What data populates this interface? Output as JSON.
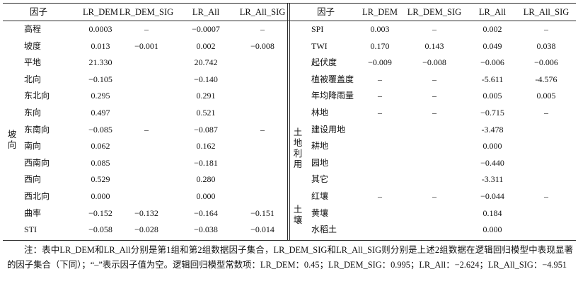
{
  "headers": [
    "因子",
    "LR_DEM",
    "LR_DEM_SIG",
    "LR_All",
    "LR_All_SIG"
  ],
  "left_groups": [
    {
      "label": "坡向",
      "row_start": 3,
      "row_end": 10
    }
  ],
  "right_groups": [
    {
      "label": "土地利用",
      "row_start": 5,
      "row_end": 9
    },
    {
      "label": "土壤",
      "row_start": 10,
      "row_end": 12
    }
  ],
  "left_rows": [
    [
      "高程",
      "0.0003",
      "–",
      "−0.0007",
      "–"
    ],
    [
      "坡度",
      "0.013",
      "−0.001",
      "0.002",
      "−0.008"
    ],
    [
      "平地",
      "21.330",
      "",
      "20.742",
      ""
    ],
    [
      "北向",
      "−0.105",
      "",
      "−0.140",
      ""
    ],
    [
      "东北向",
      "0.295",
      "",
      "0.291",
      ""
    ],
    [
      "东向",
      "0.497",
      "",
      "0.521",
      ""
    ],
    [
      "东南向",
      "−0.085",
      "–",
      "−0.087",
      "–"
    ],
    [
      "南向",
      "0.062",
      "",
      "0.162",
      ""
    ],
    [
      "西南向",
      "0.085",
      "",
      "−0.181",
      ""
    ],
    [
      "西向",
      "0.529",
      "",
      "0.280",
      ""
    ],
    [
      "西北向",
      "0.000",
      "",
      "0.000",
      ""
    ],
    [
      "曲率",
      "−0.152",
      "−0.132",
      "−0.164",
      "−0.151"
    ],
    [
      "STI",
      "−0.058",
      "−0.028",
      "−0.038",
      "−0.014"
    ]
  ],
  "right_rows": [
    [
      "SPI",
      "0.003",
      "–",
      "0.002",
      "–"
    ],
    [
      "TWI",
      "0.170",
      "0.143",
      "0.049",
      "0.038"
    ],
    [
      "起伏度",
      "−0.009",
      "−0.008",
      "−0.006",
      "−0.006"
    ],
    [
      "植被覆盖度",
      "–",
      "–",
      "-5.611",
      "-4.576"
    ],
    [
      "年均降雨量",
      "–",
      "–",
      "0.005",
      "0.005"
    ],
    [
      "林地",
      "–",
      "–",
      "−0.715",
      "–"
    ],
    [
      "建设用地",
      "",
      "",
      "-3.478",
      ""
    ],
    [
      "耕地",
      "",
      "",
      "0.000",
      ""
    ],
    [
      "园地",
      "",
      "",
      "−0.440",
      ""
    ],
    [
      "其它",
      "",
      "",
      "-3.311",
      ""
    ],
    [
      "红壤",
      "–",
      "–",
      "−0.044",
      "–"
    ],
    [
      "黄壤",
      "",
      "",
      "0.184",
      ""
    ],
    [
      "水稻土",
      "",
      "",
      "0.000",
      ""
    ]
  ],
  "note": "注：表中LR_DEM和LR_All分别是第1组和第2组数据因子集合，LR_DEM_SIG和LR_All_SIG则分别是上述2组数据在逻辑回归模型中表现显著的因子集合（下同）；“–”表示因子值为空。逻辑回归模型常数项：LR_DEM：0.45；LR_DEM_SIG：0.995；LR_All：−2.624；LR_All_SIG：−4.951"
}
